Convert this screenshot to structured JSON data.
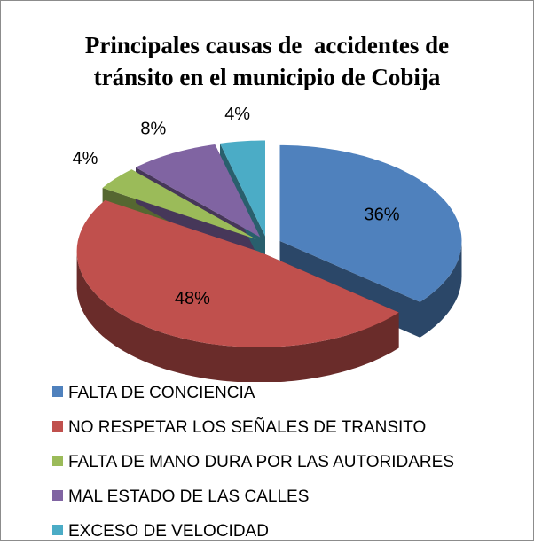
{
  "chart_data": {
    "type": "pie",
    "title": "Principales causas de  accidentes de tránsito en el municipio de Cobija",
    "categories": [
      "FALTA DE CONCIENCIA",
      "NO RESPETAR LOS SEÑALES DE TRANSITO",
      "FALTA DE MANO DURA POR LAS AUTORIDARES",
      "MAL ESTADO DE LAS CALLES",
      "EXCESO DE VELOCIDAD"
    ],
    "values": [
      36,
      48,
      4,
      8,
      4
    ],
    "value_labels": [
      "36%",
      "48%",
      "4%",
      "8%",
      "4%"
    ],
    "colors": [
      "#4f81bd",
      "#c0504d",
      "#9bbb59",
      "#8064a2",
      "#4bacc6"
    ],
    "legend": "bottom"
  }
}
